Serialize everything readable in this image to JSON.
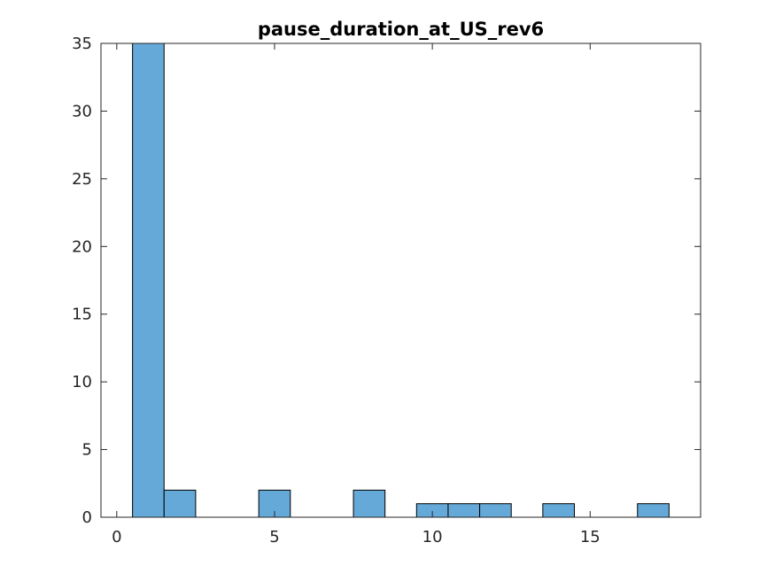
{
  "chart_data": {
    "type": "bar",
    "title": "pause_duration_at_US_rev6",
    "xlabel": "",
    "ylabel": "",
    "xlim": [
      -0.5,
      18.5
    ],
    "ylim": [
      0,
      35
    ],
    "xticks": [
      0,
      5,
      10,
      15
    ],
    "yticks": [
      0,
      5,
      10,
      15,
      20,
      25,
      30,
      35
    ],
    "bin_width": 1,
    "bins": [
      {
        "start": 0.5,
        "end": 1.5,
        "count": 35
      },
      {
        "start": 1.5,
        "end": 2.5,
        "count": 2
      },
      {
        "start": 4.5,
        "end": 5.5,
        "count": 2
      },
      {
        "start": 7.5,
        "end": 8.5,
        "count": 2
      },
      {
        "start": 9.5,
        "end": 10.5,
        "count": 1
      },
      {
        "start": 10.5,
        "end": 11.5,
        "count": 1
      },
      {
        "start": 11.5,
        "end": 12.5,
        "count": 1
      },
      {
        "start": 13.5,
        "end": 14.5,
        "count": 1
      },
      {
        "start": 16.5,
        "end": 17.5,
        "count": 1
      }
    ],
    "bar_color": "#65a9d9",
    "grid": false,
    "box": true
  }
}
